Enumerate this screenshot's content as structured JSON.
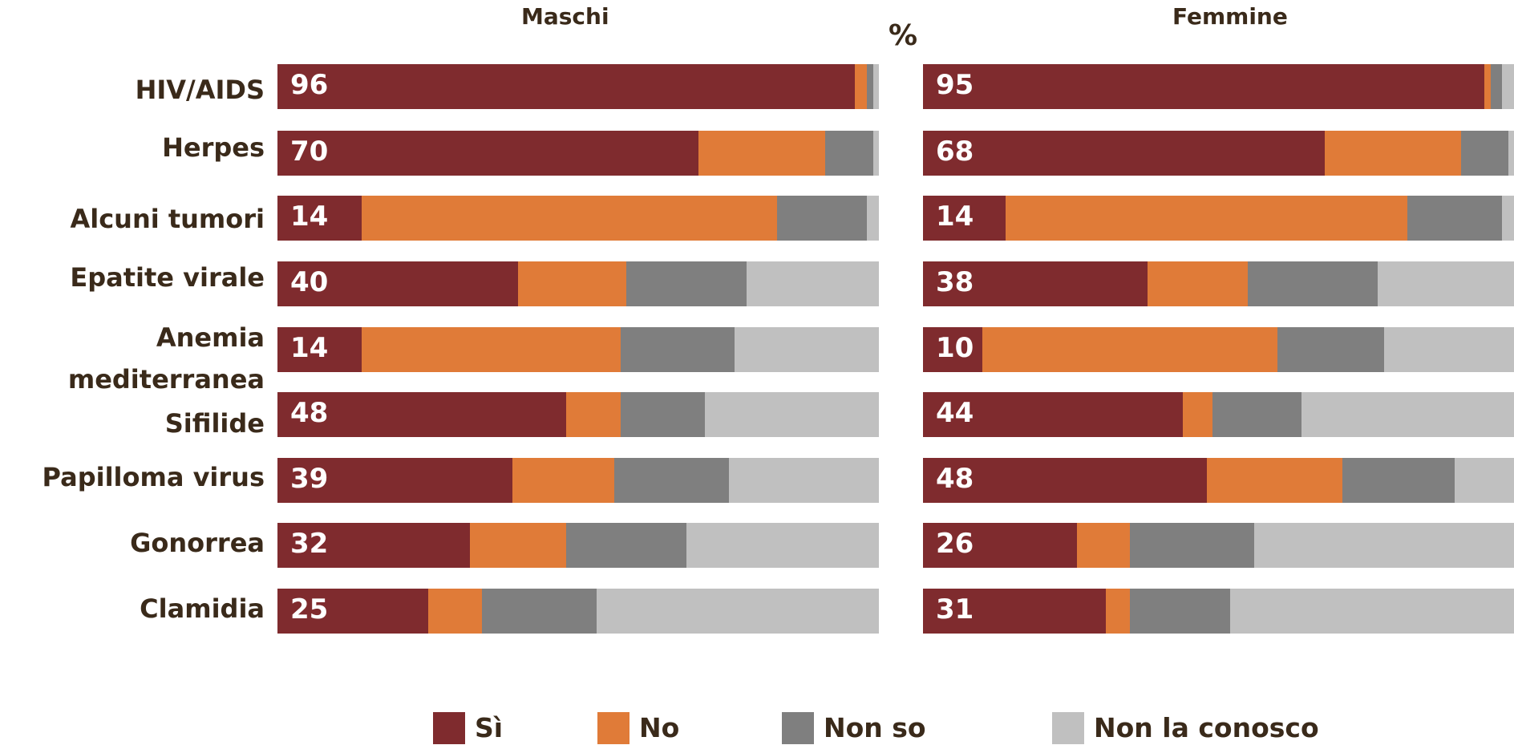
{
  "chart_data": {
    "type": "bar",
    "subtype": "stacked-horizontal-100",
    "unit_label": "%",
    "categories": [
      "HIV/AIDS",
      "Herpes",
      "Alcuni tumori",
      "Epatite virale",
      "Anemia mediterranea",
      "Sifilide",
      "Papilloma virus",
      "Gonorrea",
      "Clamidia"
    ],
    "panels": [
      {
        "title": "Maschi",
        "series": [
          {
            "name": "Sì",
            "values": [
              96,
              70,
              14,
              40,
              14,
              48,
              39,
              32,
              25
            ]
          },
          {
            "name": "No",
            "values": [
              2,
              21,
              69,
              18,
              43,
              9,
              17,
              16,
              9
            ]
          },
          {
            "name": "Non so",
            "values": [
              1,
              8,
              15,
              20,
              19,
              14,
              19,
              20,
              19
            ]
          },
          {
            "name": "Non la conosco",
            "values": [
              1,
              1,
              2,
              22,
              24,
              29,
              25,
              32,
              47
            ]
          }
        ]
      },
      {
        "title": "Femmine",
        "series": [
          {
            "name": "Sì",
            "values": [
              95,
              68,
              14,
              38,
              10,
              44,
              48,
              26,
              31
            ]
          },
          {
            "name": "No",
            "values": [
              1,
              23,
              68,
              17,
              50,
              5,
              23,
              9,
              4
            ]
          },
          {
            "name": "Non so",
            "values": [
              2,
              8,
              16,
              22,
              18,
              15,
              19,
              21,
              17
            ]
          },
          {
            "name": "Non la conosco",
            "values": [
              2,
              1,
              2,
              23,
              22,
              36,
              10,
              44,
              48
            ]
          }
        ]
      }
    ],
    "xlim": [
      0,
      100
    ],
    "legend_position": "bottom",
    "colors": {
      "Sì": "#7f2b2e",
      "No": "#e07b38",
      "Non so": "#7f7f7f",
      "Non la conosco": "#c0c0c0"
    }
  }
}
